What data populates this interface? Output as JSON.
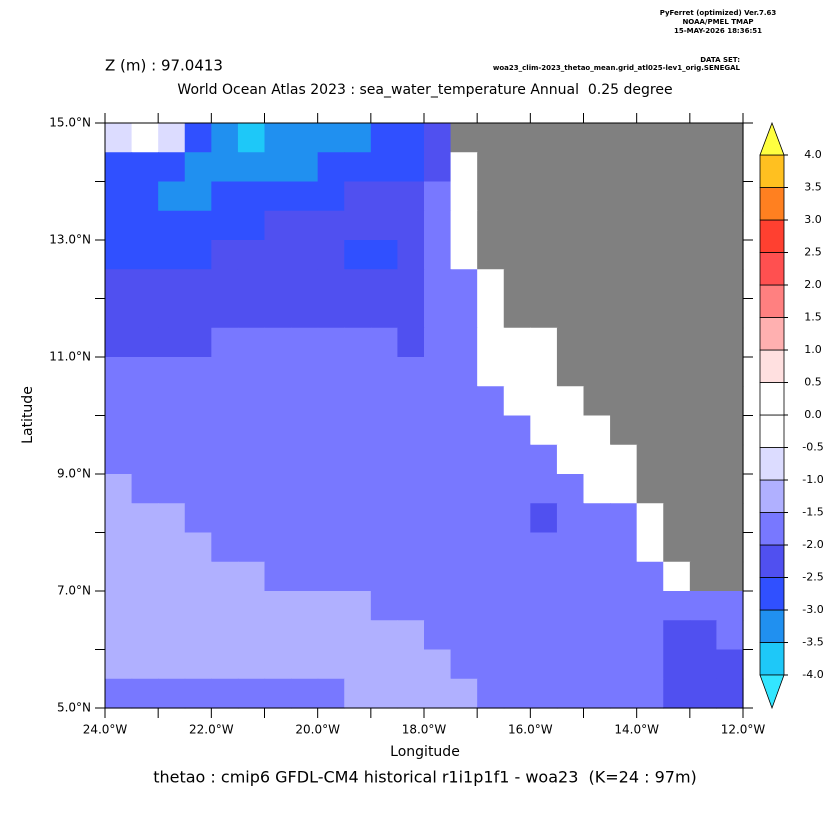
{
  "chart_data": {
    "type": "heatmap",
    "header": [
      "PyFerret (optimized) Ver.7.63",
      "NOAA/PMEL TMAP",
      "15-MAY-2026 18:36:51"
    ],
    "dataset_label": "DATA SET:",
    "dataset": "woa23_clim-2023_thetao_mean.grid_atl025-lev1_orig.SENEGAL",
    "subtitle": "Z (m) : 97.0413",
    "title": "World Ocean Atlas 2023 : sea_water_temperature Annual  0.25 degree",
    "xlabel": "Longitude",
    "ylabel": "Latitude",
    "caption": "thetao : cmip6 GFDL-CM4 historical r1i1p1f1 - woa23  (K=24 : 97m)",
    "xlim": [
      -24,
      -12
    ],
    "ylim": [
      5,
      15
    ],
    "xticks": [
      {
        "value": -24,
        "label": "24.0°W"
      },
      {
        "value": -22,
        "label": "22.0°W"
      },
      {
        "value": -20,
        "label": "20.0°W"
      },
      {
        "value": -18,
        "label": "18.0°W"
      },
      {
        "value": -16,
        "label": "16.0°W"
      },
      {
        "value": -14,
        "label": "14.0°W"
      },
      {
        "value": -12,
        "label": "12.0°W"
      }
    ],
    "xticks_minor": [
      -23,
      -21,
      -19,
      -17,
      -15,
      -13
    ],
    "yticks": [
      {
        "value": 5,
        "label": "5.0°N"
      },
      {
        "value": 7,
        "label": "7.0°N"
      },
      {
        "value": 9,
        "label": "9.0°N"
      },
      {
        "value": 11,
        "label": "11.0°N"
      },
      {
        "value": 13,
        "label": "13.0°N"
      },
      {
        "value": 15,
        "label": "15.0°N"
      }
    ],
    "yticks_minor": [
      6,
      8,
      10,
      12,
      14
    ],
    "x": [
      -23.75,
      -23.25,
      -22.75,
      -22.25,
      -21.75,
      -21.25,
      -20.75,
      -20.25,
      -19.75,
      -19.25,
      -18.75,
      -18.25,
      -17.75,
      -17.25,
      -16.75,
      -16.25,
      -15.75,
      -15.25,
      -14.75,
      -14.25,
      -13.75,
      -13.25,
      -12.75,
      -12.25
    ],
    "y": [
      14.75,
      14.25,
      13.75,
      13.25,
      12.75,
      12.25,
      11.75,
      11.25,
      10.75,
      10.25,
      9.75,
      9.25,
      8.75,
      8.25,
      7.75,
      7.25,
      6.75,
      6.25,
      5.75,
      5.25
    ],
    "z": [
      [
        -0.75,
        0.25,
        -0.75,
        -2.75,
        -3.25,
        -3.75,
        -3.25,
        -3.25,
        -3.25,
        -3.25,
        -2.75,
        -2.75,
        -2.25,
        null,
        null,
        null,
        null,
        null,
        null,
        null,
        null,
        null,
        null,
        null
      ],
      [
        -2.75,
        -2.75,
        -2.75,
        -3.25,
        -3.25,
        -3.25,
        -3.25,
        -3.25,
        -2.75,
        -2.75,
        -2.75,
        -2.75,
        -2.25,
        0.25,
        null,
        null,
        null,
        null,
        null,
        null,
        null,
        null,
        null,
        null
      ],
      [
        -2.75,
        -2.75,
        -3.25,
        -3.25,
        -2.75,
        -2.75,
        -2.75,
        -2.75,
        -2.75,
        -2.25,
        -2.25,
        -2.25,
        -1.75,
        0.25,
        null,
        null,
        null,
        null,
        null,
        null,
        null,
        null,
        null,
        null
      ],
      [
        -2.75,
        -2.75,
        -2.75,
        -2.75,
        -2.75,
        -2.75,
        -2.25,
        -2.25,
        -2.25,
        -2.25,
        -2.25,
        -2.25,
        -1.75,
        0.25,
        null,
        null,
        null,
        null,
        null,
        null,
        null,
        null,
        null,
        null
      ],
      [
        -2.75,
        -2.75,
        -2.75,
        -2.75,
        -2.25,
        -2.25,
        -2.25,
        -2.25,
        -2.25,
        -2.75,
        -2.75,
        -2.25,
        -1.75,
        0.25,
        null,
        null,
        null,
        null,
        null,
        null,
        null,
        null,
        null,
        null
      ],
      [
        -2.25,
        -2.25,
        -2.25,
        -2.25,
        -2.25,
        -2.25,
        -2.25,
        -2.25,
        -2.25,
        -2.25,
        -2.25,
        -2.25,
        -1.75,
        -1.75,
        0.25,
        null,
        null,
        null,
        null,
        null,
        null,
        null,
        null,
        null
      ],
      [
        -2.25,
        -2.25,
        -2.25,
        -2.25,
        -2.25,
        -2.25,
        -2.25,
        -2.25,
        -2.25,
        -2.25,
        -2.25,
        -2.25,
        -1.75,
        -1.75,
        0.25,
        null,
        null,
        null,
        null,
        null,
        null,
        null,
        null,
        null
      ],
      [
        -2.25,
        -2.25,
        -2.25,
        -2.25,
        -1.75,
        -1.75,
        -1.75,
        -1.75,
        -1.75,
        -1.75,
        -1.75,
        -2.25,
        -1.75,
        -1.75,
        0.25,
        0.25,
        0.25,
        null,
        null,
        null,
        null,
        null,
        null,
        null
      ],
      [
        -1.75,
        -1.75,
        -1.75,
        -1.75,
        -1.75,
        -1.75,
        -1.75,
        -1.75,
        -1.75,
        -1.75,
        -1.75,
        -1.75,
        -1.75,
        -1.75,
        0.25,
        0.25,
        0.25,
        null,
        null,
        null,
        null,
        null,
        null,
        null
      ],
      [
        -1.75,
        -1.75,
        -1.75,
        -1.75,
        -1.75,
        -1.75,
        -1.75,
        -1.75,
        -1.75,
        -1.75,
        -1.75,
        -1.75,
        -1.75,
        -1.75,
        -1.75,
        0.25,
        0.25,
        0.25,
        null,
        null,
        null,
        null,
        null,
        null
      ],
      [
        -1.75,
        -1.75,
        -1.75,
        -1.75,
        -1.75,
        -1.75,
        -1.75,
        -1.75,
        -1.75,
        -1.75,
        -1.75,
        -1.75,
        -1.75,
        -1.75,
        -1.75,
        -1.75,
        0.25,
        0.25,
        0.25,
        null,
        null,
        null,
        null,
        null
      ],
      [
        -1.75,
        -1.75,
        -1.75,
        -1.75,
        -1.75,
        -1.75,
        -1.75,
        -1.75,
        -1.75,
        -1.75,
        -1.75,
        -1.75,
        -1.75,
        -1.75,
        -1.75,
        -1.75,
        -1.75,
        0.25,
        0.25,
        0.25,
        null,
        null,
        null,
        null
      ],
      [
        -1.25,
        -1.75,
        -1.75,
        -1.75,
        -1.75,
        -1.75,
        -1.75,
        -1.75,
        -1.75,
        -1.75,
        -1.75,
        -1.75,
        -1.75,
        -1.75,
        -1.75,
        -1.75,
        -1.75,
        -1.75,
        0.25,
        0.25,
        null,
        null,
        null,
        null
      ],
      [
        -1.25,
        -1.25,
        -1.25,
        -1.75,
        -1.75,
        -1.75,
        -1.75,
        -1.75,
        -1.75,
        -1.75,
        -1.75,
        -1.75,
        -1.75,
        -1.75,
        -1.75,
        -1.75,
        -2.25,
        -1.75,
        -1.75,
        -1.75,
        0.25,
        null,
        null,
        null
      ],
      [
        -1.25,
        -1.25,
        -1.25,
        -1.25,
        -1.75,
        -1.75,
        -1.75,
        -1.75,
        -1.75,
        -1.75,
        -1.75,
        -1.75,
        -1.75,
        -1.75,
        -1.75,
        -1.75,
        -1.75,
        -1.75,
        -1.75,
        -1.75,
        0.25,
        null,
        null,
        null
      ],
      [
        -1.25,
        -1.25,
        -1.25,
        -1.25,
        -1.25,
        -1.25,
        -1.75,
        -1.75,
        -1.75,
        -1.75,
        -1.75,
        -1.75,
        -1.75,
        -1.75,
        -1.75,
        -1.75,
        -1.75,
        -1.75,
        -1.75,
        -1.75,
        -1.75,
        0.25,
        null,
        null
      ],
      [
        -1.25,
        -1.25,
        -1.25,
        -1.25,
        -1.25,
        -1.25,
        -1.25,
        -1.25,
        -1.25,
        -1.25,
        -1.75,
        -1.75,
        -1.75,
        -1.75,
        -1.75,
        -1.75,
        -1.75,
        -1.75,
        -1.75,
        -1.75,
        -1.75,
        -1.75,
        -1.75,
        -1.75
      ],
      [
        -1.25,
        -1.25,
        -1.25,
        -1.25,
        -1.25,
        -1.25,
        -1.25,
        -1.25,
        -1.25,
        -1.25,
        -1.25,
        -1.25,
        -1.75,
        -1.75,
        -1.75,
        -1.75,
        -1.75,
        -1.75,
        -1.75,
        -1.75,
        -1.75,
        -2.25,
        -2.25,
        -1.75
      ],
      [
        -1.25,
        -1.25,
        -1.25,
        -1.25,
        -1.25,
        -1.25,
        -1.25,
        -1.25,
        -1.25,
        -1.25,
        -1.25,
        -1.25,
        -1.25,
        -1.75,
        -1.75,
        -1.75,
        -1.75,
        -1.75,
        -1.75,
        -1.75,
        -1.75,
        -2.25,
        -2.25,
        -2.25
      ],
      [
        -1.75,
        -1.75,
        -1.75,
        -1.75,
        -1.75,
        -1.75,
        -1.75,
        -1.75,
        -1.75,
        -1.25,
        -1.25,
        -1.25,
        -1.25,
        -1.25,
        -1.75,
        -1.75,
        -1.75,
        -1.75,
        -1.75,
        -1.75,
        -1.75,
        -2.25,
        -2.25,
        -2.25
      ]
    ],
    "land_color": "#808080",
    "colorbar": {
      "levels": [
        {
          "value": -4,
          "label": "-4.0"
        },
        {
          "value": -3.5,
          "label": "-3.5"
        },
        {
          "value": -3,
          "label": "-3.0"
        },
        {
          "value": -2.5,
          "label": "-2.5"
        },
        {
          "value": -2,
          "label": "-2.0"
        },
        {
          "value": -1.5,
          "label": "-1.5"
        },
        {
          "value": -1,
          "label": "-1.0"
        },
        {
          "value": -0.5,
          "label": "-0.5"
        },
        {
          "value": 0,
          "label": "0.0"
        },
        {
          "value": 0.5,
          "label": "0.5"
        },
        {
          "value": 1,
          "label": "1.0"
        },
        {
          "value": 1.5,
          "label": "1.5"
        },
        {
          "value": 2,
          "label": "2.0"
        },
        {
          "value": 2.5,
          "label": "2.5"
        },
        {
          "value": 3,
          "label": "3.0"
        },
        {
          "value": 3.5,
          "label": "3.5"
        },
        {
          "value": 4,
          "label": "4.0"
        }
      ],
      "colors": [
        "#33e6ff",
        "#1ec8f8",
        "#2090f0",
        "#3050ff",
        "#5050f0",
        "#7878ff",
        "#b0b0ff",
        "#dcdcff",
        "#ffffff",
        "#ffffff",
        "#ffe0e0",
        "#ffb0b0",
        "#ff8080",
        "#ff5050",
        "#ff4030",
        "#ff8020",
        "#ffc020",
        "#ffff40"
      ]
    }
  }
}
